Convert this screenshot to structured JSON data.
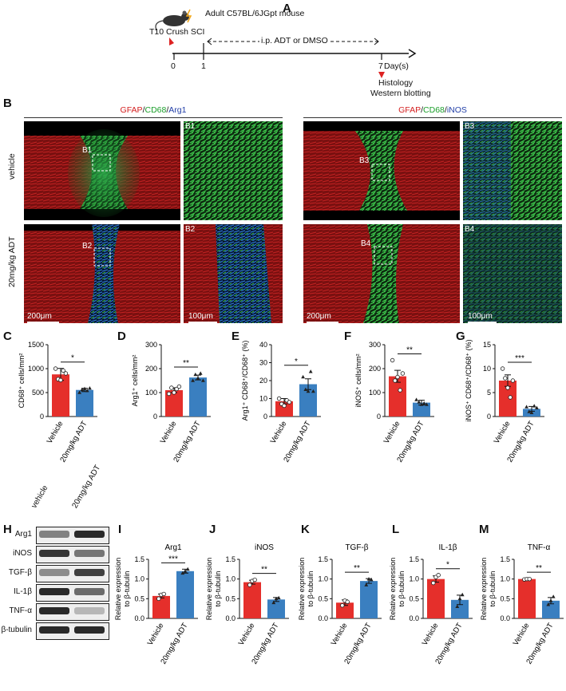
{
  "panels": {
    "A": "A",
    "B": "B",
    "C": "C",
    "D": "D",
    "E": "E",
    "F": "F",
    "G": "G",
    "H": "H",
    "I": "I",
    "J": "J",
    "K": "K",
    "L": "L",
    "M": "M"
  },
  "timeline": {
    "mouse_label": "Adult C57BL/6JGpt mouse",
    "injury_label": "T10 Crush SCI",
    "treatment_label": "i.p. ADT or DMSO",
    "ticks": [
      "0",
      "1",
      "7"
    ],
    "axis_unit": "Day(s)",
    "endpoint1": "Histology",
    "endpoint2": "Western blotting"
  },
  "histology": {
    "left_title": {
      "gfap": "GFAP",
      "sep1": "/",
      "cd68": "CD68",
      "sep2": "/",
      "marker": "Arg1"
    },
    "right_title": {
      "gfap": "GFAP",
      "sep1": "/",
      "cd68": "CD68",
      "sep2": "/",
      "marker": "iNOS"
    },
    "row_vehicle": "vehicle",
    "row_adt": "20mg/kg ADT",
    "insets": [
      "B1",
      "B2",
      "B3",
      "B4"
    ],
    "scale_large": "200μm",
    "scale_small": "100μm"
  },
  "colors": {
    "vehicle": "#e52f2b",
    "adt": "#3a7fc0",
    "gfap": "#d42020",
    "cd68": "#1a9e2a",
    "marker": "#2340a8"
  },
  "western": {
    "lanes": [
      "vehicle",
      "20mg/kg ADT"
    ],
    "proteins": [
      "Arg1",
      "iNOS",
      "TGF-β",
      "IL-1β",
      "TNF-α",
      "β-tubulin"
    ]
  },
  "chart_data": [
    {
      "panel": "C",
      "type": "bar",
      "categories": [
        "Vehicle",
        "20mg/kg ADT"
      ],
      "values": [
        880,
        555
      ],
      "errors": [
        125,
        35
      ],
      "points": [
        [
          1000,
          780,
          760,
          960,
          900
        ],
        [
          500,
          560,
          580,
          540,
          590
        ]
      ],
      "ylabel": "CD68⁺ cells/mm²",
      "yticks": [
        0,
        500,
        1000,
        1500
      ],
      "ylim": [
        0,
        1500
      ],
      "sig": "*"
    },
    {
      "panel": "D",
      "type": "bar",
      "categories": [
        "Vehicle",
        "20mg/kg ADT"
      ],
      "values": [
        110,
        163
      ],
      "errors": [
        10,
        10
      ],
      "points": [
        [
          95,
          120,
          100,
          115,
          125
        ],
        [
          150,
          175,
          160,
          180,
          150
        ]
      ],
      "ylabel": "Arg1⁺ cells/mm²",
      "yticks": [
        0,
        100,
        200,
        300
      ],
      "ylim": [
        0,
        300
      ],
      "sig": "**"
    },
    {
      "panel": "E",
      "type": "bar",
      "categories": [
        "Vehicle",
        "20mg/kg ADT"
      ],
      "values": [
        8.5,
        18
      ],
      "errors": [
        1.5,
        3
      ],
      "points": [
        [
          10,
          7,
          6,
          9,
          8
        ],
        [
          22,
          15,
          14,
          25,
          14
        ]
      ],
      "ylabel": "Arg1⁺ CD68⁺/CD68⁺ (%)",
      "yticks": [
        0,
        10,
        20,
        30,
        40
      ],
      "ylim": [
        0,
        40
      ],
      "sig": "*"
    },
    {
      "panel": "F",
      "type": "bar",
      "categories": [
        "Vehicle",
        "20mg/kg ADT"
      ],
      "values": [
        168,
        58
      ],
      "errors": [
        25,
        10
      ],
      "points": [
        [
          235,
          150,
          165,
          110,
          180
        ],
        [
          70,
          60,
          50,
          55,
          50
        ]
      ],
      "ylabel": "iNOS⁺ cells/mm²",
      "yticks": [
        0,
        100,
        200,
        300
      ],
      "ylim": [
        0,
        300
      ],
      "sig": "**"
    },
    {
      "panel": "G",
      "type": "bar",
      "categories": [
        "Vehicle",
        "20mg/kg ADT"
      ],
      "values": [
        7.5,
        1.6
      ],
      "errors": [
        1.2,
        0.5
      ],
      "points": [
        [
          10,
          8,
          6,
          4,
          7.5
        ],
        [
          2,
          1,
          0.8,
          2.2,
          1.8
        ]
      ],
      "ylabel": "iNOS⁺ CD68⁺/CD68⁺ (%)",
      "yticks": [
        0,
        5,
        10,
        15
      ],
      "ylim": [
        0,
        15
      ],
      "sig": "***"
    },
    {
      "panel": "I",
      "type": "bar",
      "title": "Arg1",
      "categories": [
        "Vehicle",
        "20mg/kg ADT"
      ],
      "values": [
        0.57,
        1.2
      ],
      "errors": [
        0.05,
        0.05
      ],
      "points": [
        [
          0.5,
          0.6,
          0.62
        ],
        [
          1.15,
          1.2,
          1.25
        ]
      ],
      "ylabel": "Relative expression to β-tubulin",
      "yticks": [
        "0.0",
        "0.5",
        "1.0",
        "1.5"
      ],
      "ylim": [
        0,
        1.5
      ],
      "sig": "***"
    },
    {
      "panel": "J",
      "type": "bar",
      "title": "iNOS",
      "categories": [
        "Vehicle",
        "20mg/kg ADT"
      ],
      "values": [
        0.92,
        0.48
      ],
      "errors": [
        0.05,
        0.05
      ],
      "points": [
        [
          0.85,
          0.95,
          0.98
        ],
        [
          0.4,
          0.5,
          0.52
        ]
      ],
      "ylabel": "Relative expression to β-tubulin",
      "yticks": [
        "0.0",
        "0.5",
        "1.0",
        "1.5"
      ],
      "ylim": [
        0,
        1.5
      ],
      "sig": "**"
    },
    {
      "panel": "K",
      "type": "bar",
      "title": "TGF-β",
      "categories": [
        "Vehicle",
        "20mg/kg ADT"
      ],
      "values": [
        0.4,
        0.95
      ],
      "errors": [
        0.07,
        0.06
      ],
      "points": [
        [
          0.33,
          0.45,
          0.42
        ],
        [
          0.85,
          1.0,
          0.98
        ]
      ],
      "ylabel": "Relative expression to β-tubulin",
      "yticks": [
        "0.0",
        "0.5",
        "1.0",
        "1.5"
      ],
      "ylim": [
        0,
        1.5
      ],
      "sig": "**"
    },
    {
      "panel": "L",
      "type": "bar",
      "title": "IL-1β",
      "categories": [
        "Vehicle",
        "20mg/kg ADT"
      ],
      "values": [
        1.0,
        0.47
      ],
      "errors": [
        0.08,
        0.12
      ],
      "points": [
        [
          0.9,
          1.05,
          1.1
        ],
        [
          0.3,
          0.5,
          0.6
        ]
      ],
      "ylabel": "Relative expression to β-tubulin",
      "yticks": [
        "0.0",
        "0.5",
        "1.0",
        "1.5"
      ],
      "ylim": [
        0,
        1.5
      ],
      "sig": "*"
    },
    {
      "panel": "M",
      "type": "bar",
      "title": "TNF-α",
      "categories": [
        "Vehicle",
        "20mg/kg ADT"
      ],
      "values": [
        1.0,
        0.45
      ],
      "errors": [
        0.01,
        0.08
      ],
      "points": [
        [
          0.99,
          1.0,
          1.0
        ],
        [
          0.35,
          0.45,
          0.55
        ]
      ],
      "ylabel": "Relative expression to β-tubulin",
      "yticks": [
        "0.0",
        "0.5",
        "1.0",
        "1.5"
      ],
      "ylim": [
        0,
        1.5
      ],
      "sig": "**"
    }
  ]
}
